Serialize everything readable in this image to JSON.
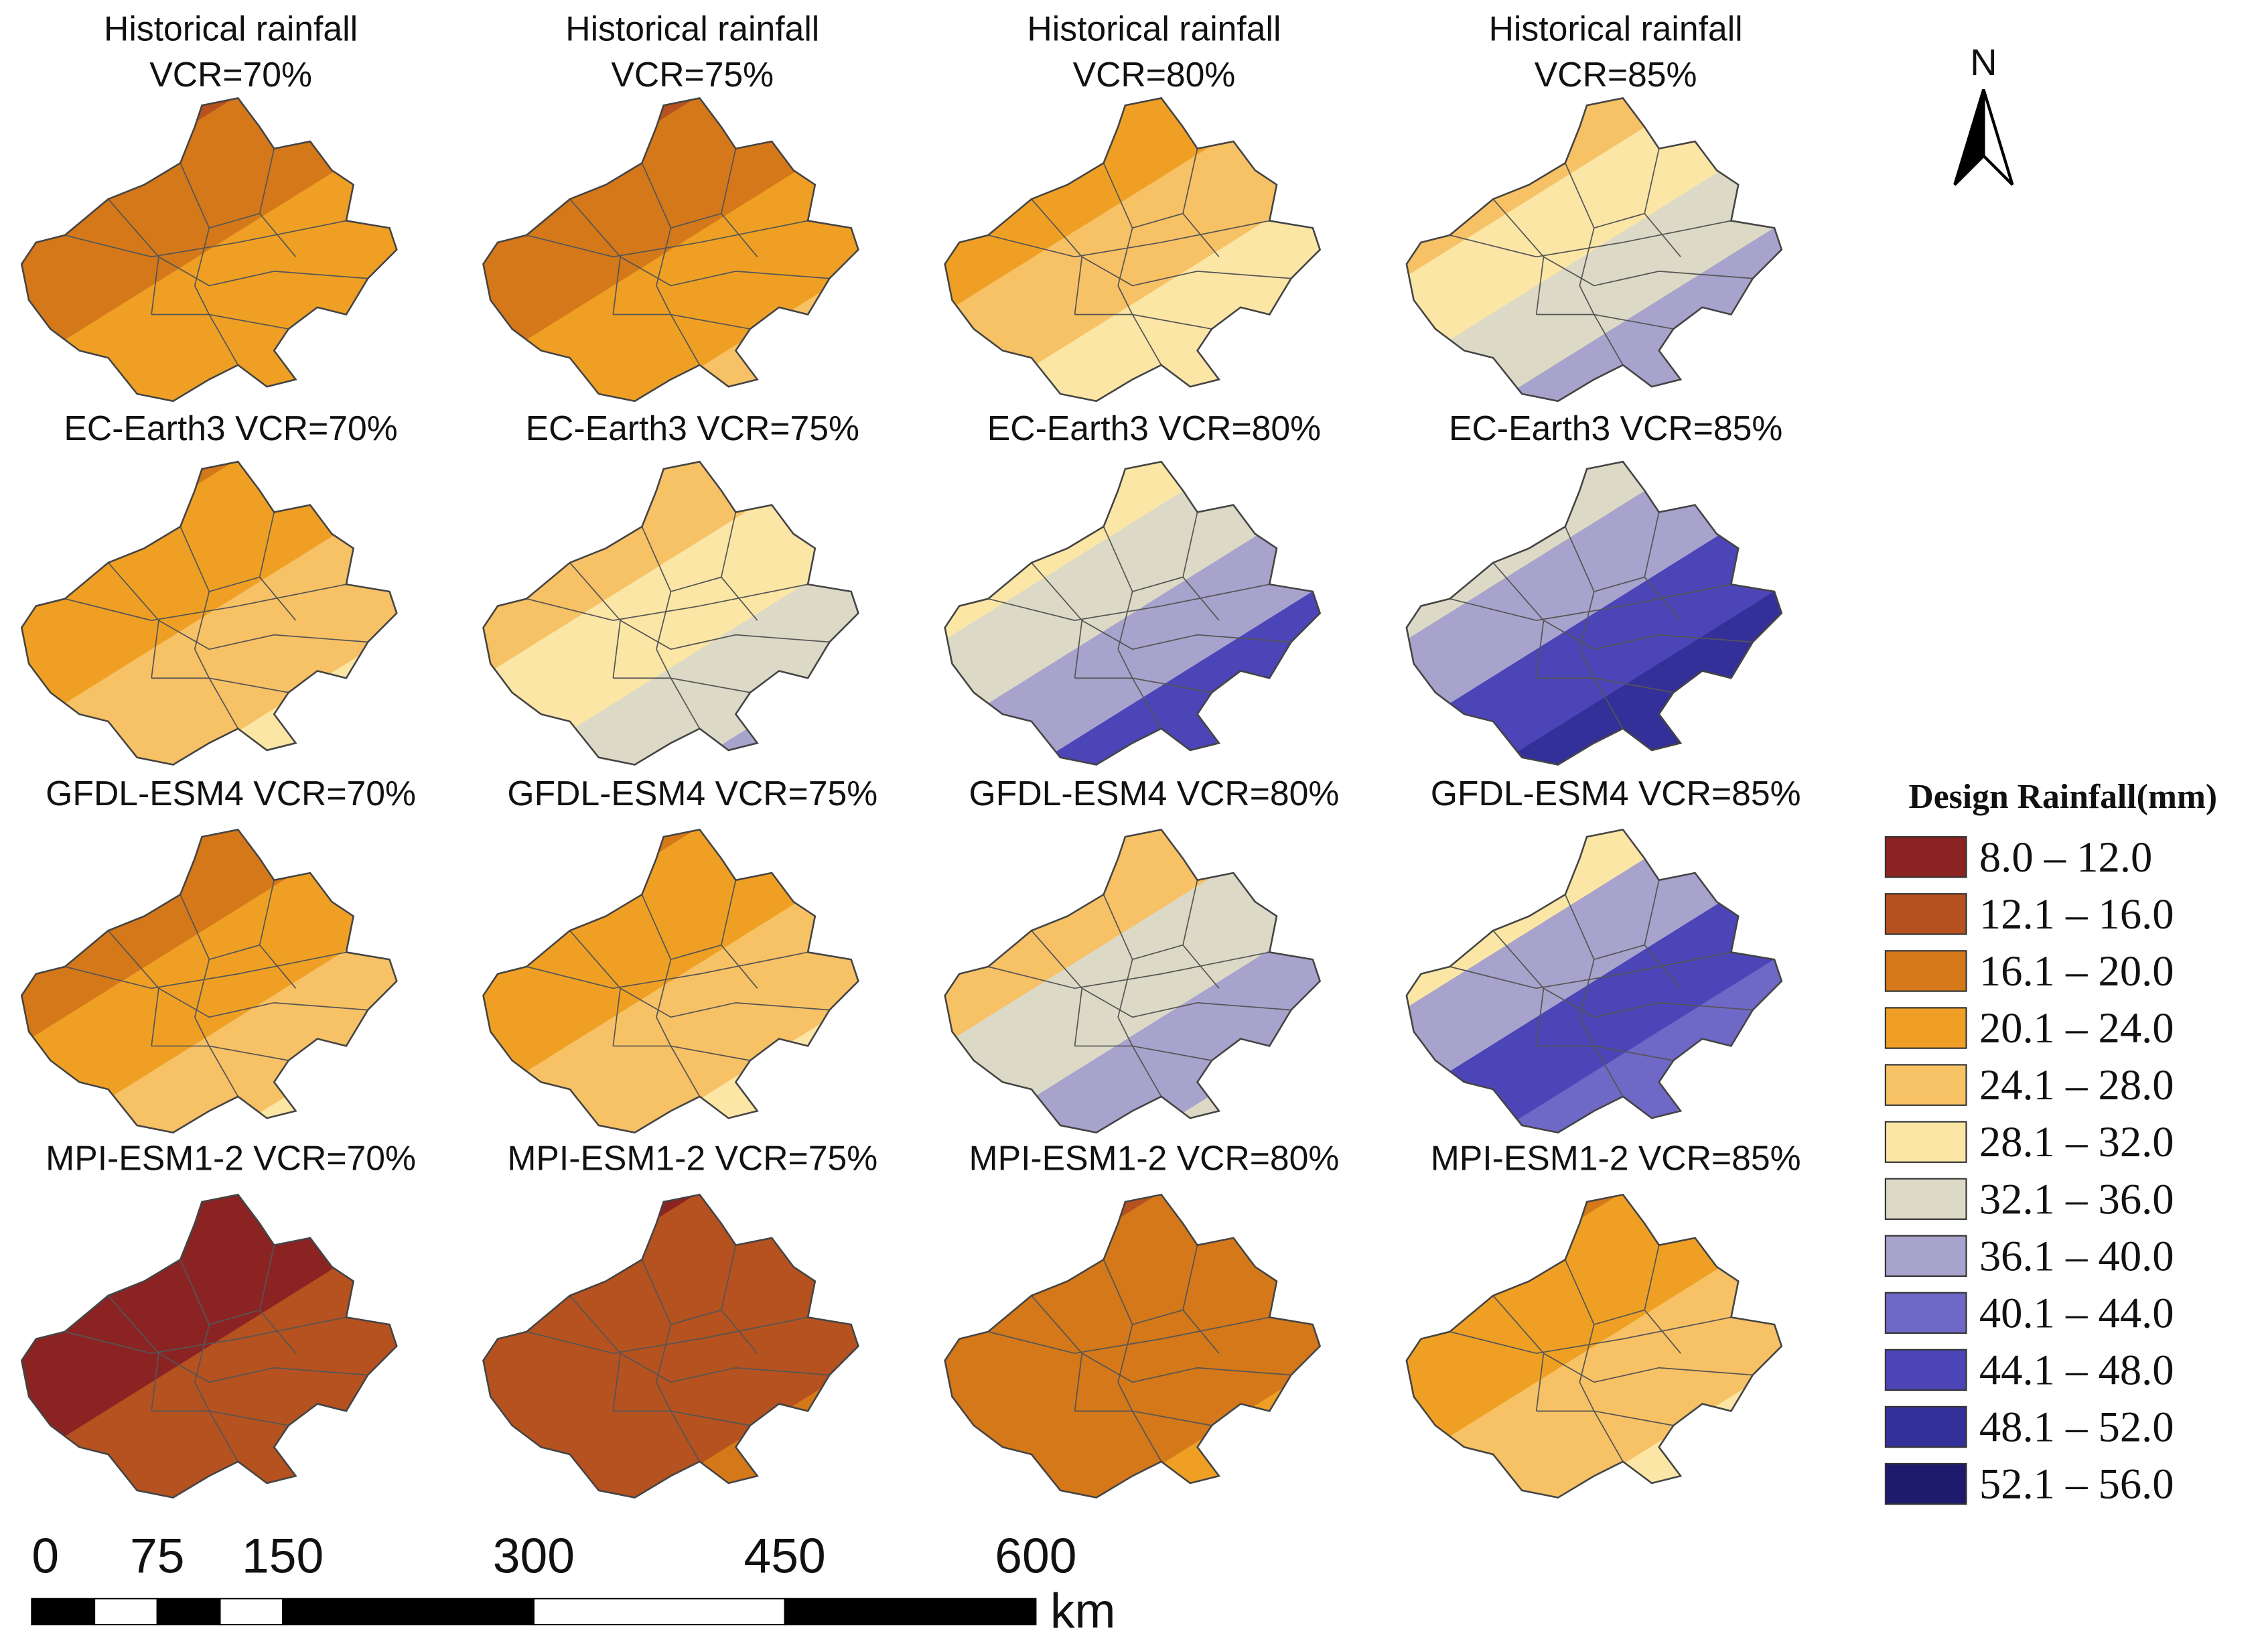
{
  "panels": [
    {
      "title": [
        "Historical rainfall",
        "VCR=70%"
      ]
    },
    {
      "title": [
        "Historical rainfall",
        "VCR=75%"
      ]
    },
    {
      "title": [
        "Historical rainfall",
        "VCR=80%"
      ]
    },
    {
      "title": [
        "Historical rainfall",
        "VCR=85%"
      ]
    },
    {
      "title": [
        "EC-Earth3  VCR=70%"
      ]
    },
    {
      "title": [
        "EC-Earth3  VCR=75%"
      ]
    },
    {
      "title": [
        "EC-Earth3  VCR=80%"
      ]
    },
    {
      "title": [
        "EC-Earth3  VCR=85%"
      ]
    },
    {
      "title": [
        "GFDL-ESM4 VCR=70%"
      ]
    },
    {
      "title": [
        "GFDL-ESM4  VCR=75%"
      ]
    },
    {
      "title": [
        "GFDL-ESM4  VCR=80%"
      ]
    },
    {
      "title": [
        "GFDL-ESM4  VCR=85%"
      ]
    },
    {
      "title": [
        "MPI-ESM1-2  VCR=70%"
      ]
    },
    {
      "title": [
        "MPI-ESM1-2 VCR=75%"
      ]
    },
    {
      "title": [
        "MPI-ESM1-2  VCR=80%"
      ]
    },
    {
      "title": [
        "MPI-ESM1-2  VCR=85%"
      ]
    }
  ],
  "legend": {
    "title": "Design Rainfall(mm)",
    "classes": [
      {
        "label": "8.0 – 12.0",
        "color": "#8b2323"
      },
      {
        "label": "12.1 – 16.0",
        "color": "#b5521f"
      },
      {
        "label": "16.1 – 20.0",
        "color": "#d4781a"
      },
      {
        "label": "20.1 – 24.0",
        "color": "#efa024"
      },
      {
        "label": "24.1 – 28.0",
        "color": "#f7c165"
      },
      {
        "label": "28.1 – 32.0",
        "color": "#fbe6a6"
      },
      {
        "label": "32.1 – 36.0",
        "color": "#dcdac6"
      },
      {
        "label": "36.1 – 40.0",
        "color": "#a7a3cc"
      },
      {
        "label": "40.1 – 44.0",
        "color": "#6e68c6"
      },
      {
        "label": "44.1 – 48.0",
        "color": "#4b45b8"
      },
      {
        "label": "48.1 – 52.0",
        "color": "#34309a"
      },
      {
        "label": "52.1 – 56.0",
        "color": "#1e1a6e"
      }
    ]
  },
  "north": "N",
  "scale_bar": {
    "ticks": [
      0,
      75,
      150,
      300,
      450,
      600
    ],
    "unit": "km"
  }
}
